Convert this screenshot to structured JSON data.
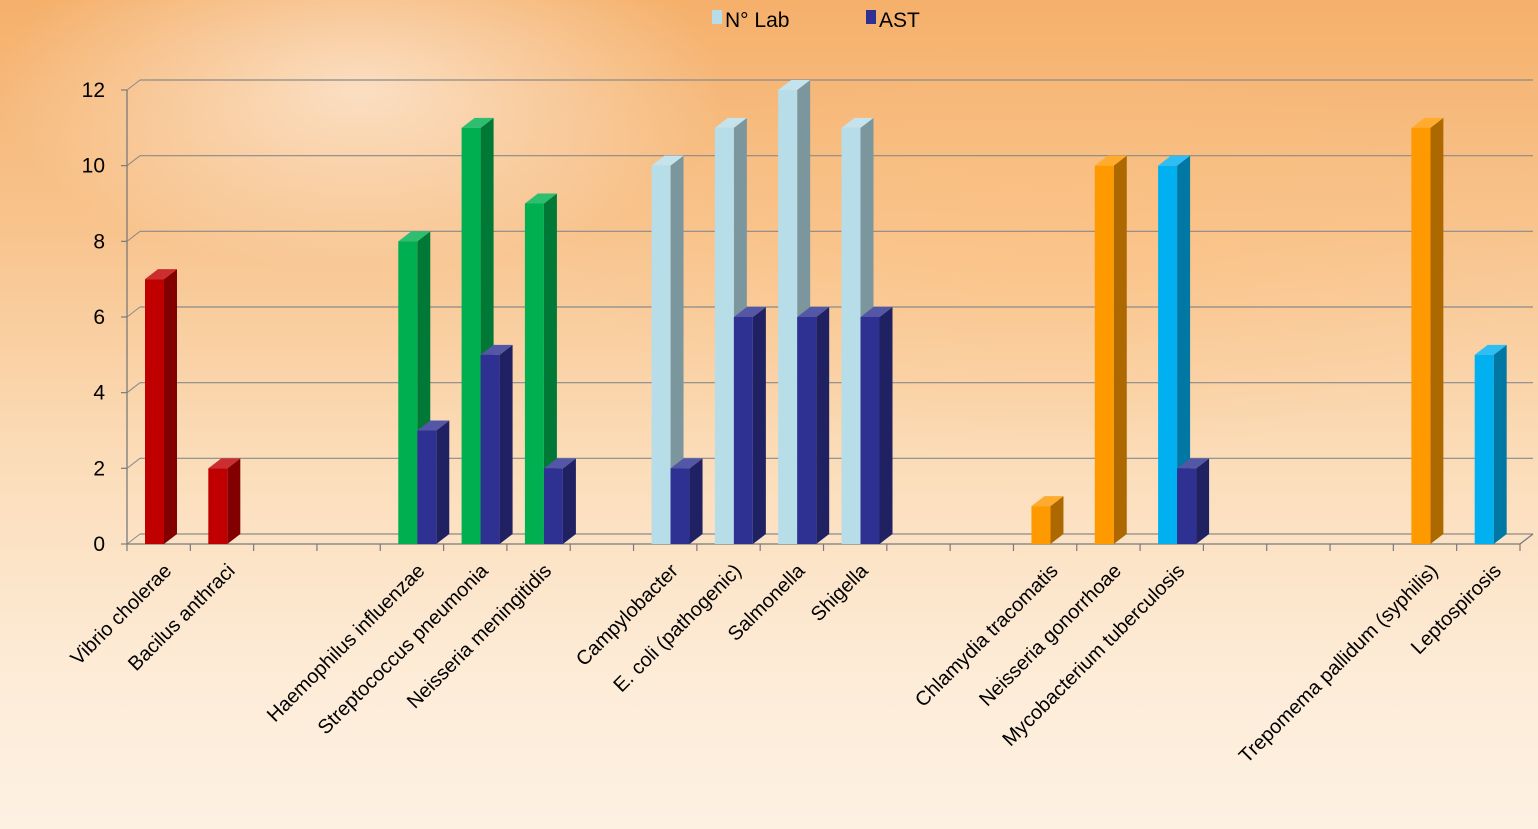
{
  "colors": {
    "red": "#c00000",
    "green": "#00b050",
    "lightblue": "#b7dde8",
    "navy": "#2e3192",
    "orange": "#ff9900",
    "skyblue": "#00b0f0"
  },
  "chart_data": {
    "type": "bar",
    "title": "",
    "xlabel": "",
    "ylabel": "",
    "ylim": [
      0,
      12
    ],
    "yticks": [
      0,
      2,
      4,
      6,
      8,
      10,
      12
    ],
    "grid": true,
    "legend_position": "top-center",
    "legend": [
      {
        "name": "N° Lab",
        "color": "#b7dde8"
      },
      {
        "name": "AST",
        "color": "#2e3192"
      }
    ],
    "categories": [
      "Vibrio cholerae",
      "Bacilus anthraci",
      "",
      "",
      "Haemophilus influenzae",
      "Streptococcus pneumonia",
      "Neisseria meningitidis",
      "",
      "Campylobacter",
      "E. coli (pathogenic)",
      "Salmonella",
      "Shigella",
      "",
      "",
      "Chlamydia tracomatis",
      "Neisseria gonorrhoae",
      "Mycobacterium tuberculosis",
      "",
      "",
      "",
      "Trepomema pallidum (syphilis)",
      "Leptospirosis"
    ],
    "series": [
      {
        "name": "N° Lab",
        "values": [
          7,
          2,
          null,
          null,
          8,
          11,
          9,
          null,
          10,
          11,
          12,
          11,
          null,
          null,
          1,
          10,
          10,
          null,
          null,
          null,
          11,
          5
        ],
        "colors": [
          "#c00000",
          "#c00000",
          null,
          null,
          "#00b050",
          "#00b050",
          "#00b050",
          null,
          "#b7dde8",
          "#b7dde8",
          "#b7dde8",
          "#b7dde8",
          null,
          null,
          "#ff9900",
          "#ff9900",
          "#00b0f0",
          null,
          null,
          null,
          "#ff9900",
          "#00b0f0"
        ]
      },
      {
        "name": "AST",
        "values": [
          null,
          null,
          null,
          null,
          3,
          5,
          2,
          null,
          2,
          6,
          6,
          6,
          null,
          null,
          null,
          null,
          2,
          null,
          null,
          null,
          null,
          null
        ],
        "colors": [
          "#2e3192"
        ]
      }
    ]
  }
}
